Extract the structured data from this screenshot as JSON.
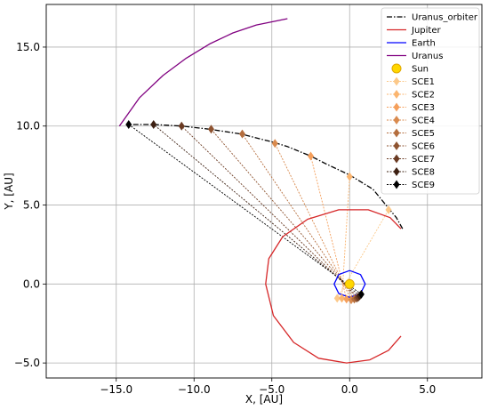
{
  "chart_data": {
    "type": "line",
    "xlabel": "X, [AU]",
    "ylabel": "Y, [AU]",
    "xlim": [
      -19.5,
      8.5
    ],
    "ylim": [
      -5.95,
      17.7
    ],
    "grid": true,
    "legend_position": "top-right",
    "x_ticks": [
      -15.0,
      -10.0,
      -5.0,
      0.0,
      5.0
    ],
    "x_tick_labels": [
      "−15.0",
      "−10.0",
      "−5.0",
      "0.0",
      "5.0"
    ],
    "y_ticks": [
      -5.0,
      0.0,
      5.0,
      10.0,
      15.0
    ],
    "y_tick_labels": [
      "−5.0",
      "0.0",
      "5.0",
      "10.0",
      "15.0"
    ],
    "legend": [
      {
        "name": "Uranus_orbiter",
        "kind": "line",
        "color": "#000000",
        "dash": "6,2,1.5,2"
      },
      {
        "name": "Jupiter",
        "kind": "line",
        "color": "#d62728"
      },
      {
        "name": "Earth",
        "kind": "line",
        "color": "#0000ff"
      },
      {
        "name": "Uranus",
        "kind": "line",
        "color": "#800080"
      },
      {
        "name": "Sun",
        "kind": "circle",
        "color": "#ffd700",
        "edge": "#e0a800"
      },
      {
        "name": "SCE1",
        "kind": "diamond",
        "color": "#fcc98a"
      },
      {
        "name": "SCE2",
        "kind": "diamond",
        "color": "#fbb56f"
      },
      {
        "name": "SCE3",
        "kind": "diamond",
        "color": "#f59f5b"
      },
      {
        "name": "SCE4",
        "kind": "diamond",
        "color": "#d98a4e"
      },
      {
        "name": "SCE5",
        "kind": "diamond",
        "color": "#b56e3e"
      },
      {
        "name": "SCE6",
        "kind": "diamond",
        "color": "#8e5330"
      },
      {
        "name": "SCE7",
        "kind": "diamond",
        "color": "#6a3a22"
      },
      {
        "name": "SCE8",
        "kind": "diamond",
        "color": "#3d2012"
      },
      {
        "name": "SCE9",
        "kind": "diamond",
        "color": "#000000"
      }
    ],
    "series": [
      {
        "name": "Uranus_orbiter",
        "color": "#000000",
        "dash": "6,2,1.5,2",
        "x": [
          3.4,
          3.0,
          2.5,
          1.5,
          0.0,
          -1.5,
          -2.5,
          -4.0,
          -5.0,
          -7.0,
          -9.0,
          -10.8,
          -12.6,
          -14.2
        ],
        "y": [
          3.5,
          4.2,
          4.8,
          6.0,
          6.9,
          7.6,
          8.1,
          8.7,
          9.0,
          9.5,
          9.8,
          10.0,
          10.1,
          10.1
        ]
      },
      {
        "name": "Jupiter",
        "color": "#d62728",
        "x": [
          3.3,
          2.5,
          1.3,
          -0.2,
          -2.0,
          -3.6,
          -4.9,
          -5.4,
          -5.2,
          -4.3,
          -2.7,
          -0.7,
          1.2,
          2.6,
          3.3
        ],
        "y": [
          -3.3,
          -4.2,
          -4.8,
          -5.0,
          -4.7,
          -3.7,
          -2.0,
          0.0,
          1.6,
          3.0,
          4.1,
          4.7,
          4.7,
          4.2,
          3.5
        ]
      },
      {
        "name": "Earth",
        "color": "#0000ff",
        "x": [
          0.0,
          0.7,
          1.0,
          0.7,
          0.0,
          -0.7,
          -1.0,
          -0.7,
          0.0
        ],
        "y": [
          0.85,
          0.6,
          0.0,
          -0.6,
          -0.85,
          -0.6,
          0.0,
          0.6,
          0.85
        ]
      },
      {
        "name": "Uranus",
        "color": "#800080",
        "x": [
          -14.8,
          -13.5,
          -12.0,
          -10.5,
          -9.0,
          -7.5,
          -6.0,
          -4.0
        ],
        "y": [
          10.0,
          11.8,
          13.2,
          14.3,
          15.2,
          15.9,
          16.4,
          16.8
        ]
      }
    ],
    "sun": {
      "x": 0.0,
      "y": 0.0
    },
    "sce_points": [
      {
        "name": "SCE1",
        "x": 2.5,
        "y": 4.7,
        "ex": -0.8,
        "ey": -0.9
      },
      {
        "name": "SCE2",
        "x": 0.0,
        "y": 6.8,
        "ex": -0.5,
        "ey": -0.9
      },
      {
        "name": "SCE3",
        "x": -2.5,
        "y": 8.1,
        "ex": -0.2,
        "ey": -0.95
      },
      {
        "name": "SCE4",
        "x": -4.8,
        "y": 8.9,
        "ex": 0.1,
        "ey": -1.0
      },
      {
        "name": "SCE5",
        "x": -6.9,
        "y": 9.5,
        "ex": 0.3,
        "ey": -0.95
      },
      {
        "name": "SCE6",
        "x": -8.9,
        "y": 9.8,
        "ex": 0.45,
        "ey": -0.9
      },
      {
        "name": "SCE7",
        "x": -10.8,
        "y": 10.0,
        "ex": 0.55,
        "ey": -0.85
      },
      {
        "name": "SCE8",
        "x": -12.6,
        "y": 10.1,
        "ex": 0.65,
        "ey": -0.75
      },
      {
        "name": "SCE9",
        "x": -14.2,
        "y": 10.1,
        "ex": 0.75,
        "ey": -0.65
      }
    ]
  }
}
